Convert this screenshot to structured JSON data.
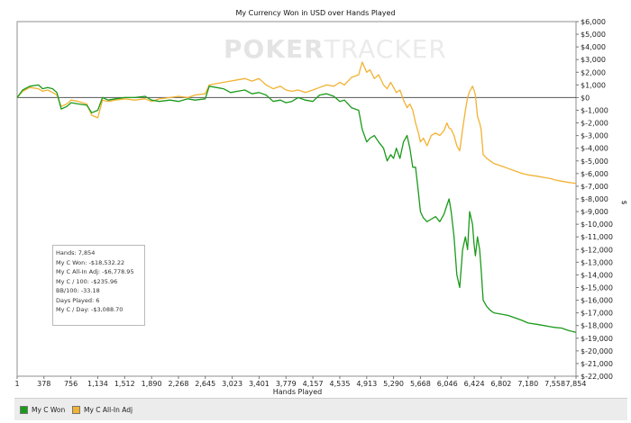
{
  "chart_data": {
    "type": "line",
    "title": "My Currency Won in USD over Hands Played",
    "xlabel": "Hands Played",
    "ylabel": "$",
    "watermark": {
      "bold": "POKER",
      "light": "TRACKER"
    },
    "x_ticks": [
      "1",
      "378",
      "756",
      "1,134",
      "1,512",
      "1,890",
      "2,268",
      "2,645",
      "3,023",
      "3,401",
      "3,779",
      "4,157",
      "4,535",
      "4,913",
      "5,290",
      "5,668",
      "6,046",
      "6,424",
      "6,802",
      "7,180",
      "7,558",
      "7,854"
    ],
    "x_tick_values": [
      1,
      378,
      756,
      1134,
      1512,
      1890,
      2268,
      2645,
      3023,
      3401,
      3779,
      4157,
      4535,
      4913,
      5290,
      5668,
      6046,
      6424,
      6802,
      7180,
      7558,
      7854
    ],
    "y_ticks": [
      "$6,000",
      "$5,000",
      "$4,000",
      "$3,000",
      "$2,000",
      "$1,000",
      "$0",
      "$-1,000",
      "$-2,000",
      "$-3,000",
      "$-4,000",
      "$-5,000",
      "$-6,000",
      "$-7,000",
      "$-8,000",
      "$-9,000",
      "$-10,000",
      "$-11,000",
      "$-12,000",
      "$-13,000",
      "$-14,000",
      "$-15,000",
      "$-16,000",
      "$-17,000",
      "$-18,000",
      "$-19,000",
      "$-20,000",
      "$-21,000",
      "$-22,000"
    ],
    "xlim": [
      1,
      7854
    ],
    "ylim": [
      -22000,
      6000
    ],
    "grid": "horizontal-zero-line",
    "legend_position": "bottom",
    "series": [
      {
        "name": "My C Won",
        "color": "#1a9a1a",
        "x": [
          1,
          80,
          180,
          300,
          360,
          430,
          500,
          560,
          620,
          700,
          760,
          860,
          980,
          1050,
          1134,
          1200,
          1280,
          1380,
          1512,
          1650,
          1800,
          1890,
          2000,
          2150,
          2268,
          2400,
          2500,
          2645,
          2700,
          2800,
          2900,
          3000,
          3100,
          3200,
          3300,
          3401,
          3500,
          3600,
          3700,
          3779,
          3860,
          3950,
          4050,
          4157,
          4250,
          4350,
          4450,
          4535,
          4600,
          4700,
          4800,
          4850,
          4913,
          4960,
          5020,
          5080,
          5150,
          5200,
          5250,
          5290,
          5330,
          5380,
          5430,
          5480,
          5520,
          5560,
          5600,
          5640,
          5668,
          5710,
          5760,
          5820,
          5880,
          5940,
          6000,
          6040,
          6070,
          6100,
          6140,
          6180,
          6220,
          6260,
          6300,
          6330,
          6360,
          6400,
          6420,
          6440,
          6470,
          6500,
          6520,
          6550,
          6600,
          6650,
          6700,
          6802,
          6900,
          7000,
          7100,
          7180,
          7300,
          7400,
          7500,
          7558,
          7650,
          7750,
          7854
        ],
        "y": [
          0,
          600,
          900,
          1000,
          700,
          800,
          700,
          400,
          -900,
          -700,
          -400,
          -500,
          -600,
          -1200,
          -1000,
          0,
          -200,
          -100,
          0,
          0,
          100,
          -200,
          -300,
          -200,
          -300,
          -100,
          -200,
          -100,
          900,
          800,
          700,
          400,
          500,
          600,
          300,
          400,
          200,
          -300,
          -200,
          -400,
          -300,
          0,
          -200,
          -300,
          200,
          300,
          100,
          -300,
          -200,
          -800,
          -1000,
          -2500,
          -3500,
          -3200,
          -3000,
          -3500,
          -4000,
          -5000,
          -4500,
          -4800,
          -4000,
          -4800,
          -3500,
          -3000,
          -4000,
          -5500,
          -5500,
          -7500,
          -9000,
          -9500,
          -9800,
          -9600,
          -9400,
          -9800,
          -9200,
          -8500,
          -8000,
          -9000,
          -11000,
          -14000,
          -15000,
          -12000,
          -11000,
          -12000,
          -9000,
          -10000,
          -11500,
          -12500,
          -11000,
          -12000,
          -13500,
          -16000,
          -16500,
          -16800,
          -17000,
          -17100,
          -17200,
          -17400,
          -17600,
          -17800,
          -17900,
          -18000,
          -18100,
          -18150,
          -18200,
          -18400,
          -18532
        ]
      },
      {
        "name": "My C All-In Adj",
        "color": "#f2b233",
        "x": [
          1,
          80,
          180,
          300,
          360,
          430,
          500,
          560,
          620,
          700,
          760,
          860,
          980,
          1050,
          1134,
          1200,
          1280,
          1380,
          1512,
          1650,
          1800,
          1890,
          2000,
          2150,
          2268,
          2400,
          2500,
          2645,
          2700,
          2800,
          2900,
          3000,
          3100,
          3200,
          3300,
          3401,
          3500,
          3600,
          3700,
          3779,
          3860,
          3950,
          4050,
          4157,
          4250,
          4350,
          4450,
          4535,
          4600,
          4700,
          4800,
          4850,
          4913,
          4960,
          5020,
          5080,
          5150,
          5200,
          5250,
          5290,
          5330,
          5380,
          5430,
          5480,
          5520,
          5560,
          5600,
          5640,
          5668,
          5710,
          5760,
          5820,
          5880,
          5940,
          6000,
          6040,
          6070,
          6100,
          6140,
          6180,
          6220,
          6260,
          6300,
          6330,
          6360,
          6400,
          6420,
          6440,
          6470,
          6500,
          6520,
          6550,
          6600,
          6650,
          6700,
          6802,
          6900,
          7000,
          7100,
          7180,
          7300,
          7400,
          7500,
          7558,
          7650,
          7750,
          7854
        ],
        "y": [
          0,
          500,
          800,
          700,
          500,
          600,
          400,
          200,
          -700,
          -500,
          -200,
          -300,
          -500,
          -1400,
          -1600,
          -200,
          -300,
          -200,
          -100,
          -200,
          -100,
          -300,
          -100,
          0,
          100,
          0,
          200,
          300,
          1000,
          1100,
          1200,
          1300,
          1400,
          1500,
          1300,
          1500,
          1000,
          700,
          900,
          600,
          500,
          600,
          400,
          600,
          800,
          1000,
          900,
          1200,
          1000,
          1600,
          1800,
          2800,
          2000,
          2200,
          1500,
          1800,
          1000,
          700,
          1200,
          800,
          400,
          600,
          -200,
          -800,
          -500,
          -1000,
          -2000,
          -2800,
          -3500,
          -3200,
          -3800,
          -3000,
          -2800,
          -3000,
          -2600,
          -2000,
          -2400,
          -2500,
          -3000,
          -3800,
          -4200,
          -2500,
          -1000,
          0,
          500,
          900,
          600,
          200,
          -1500,
          -2000,
          -2500,
          -4500,
          -4800,
          -5000,
          -5200,
          -5400,
          -5600,
          -5800,
          -6000,
          -6100,
          -6200,
          -6300,
          -6400,
          -6500,
          -6600,
          -6700,
          -6779
        ]
      }
    ]
  },
  "stats": {
    "hands": "Hands: 7,854",
    "won": "My C Won: -$18,532.22",
    "allin": "My C All-In Adj: -$6,778.95",
    "per100": "My C / 100: -$235.96",
    "bb100": "BB/100: -33.18",
    "days": "Days Played: 6",
    "perday": "My C / Day: -$3,088.70"
  }
}
